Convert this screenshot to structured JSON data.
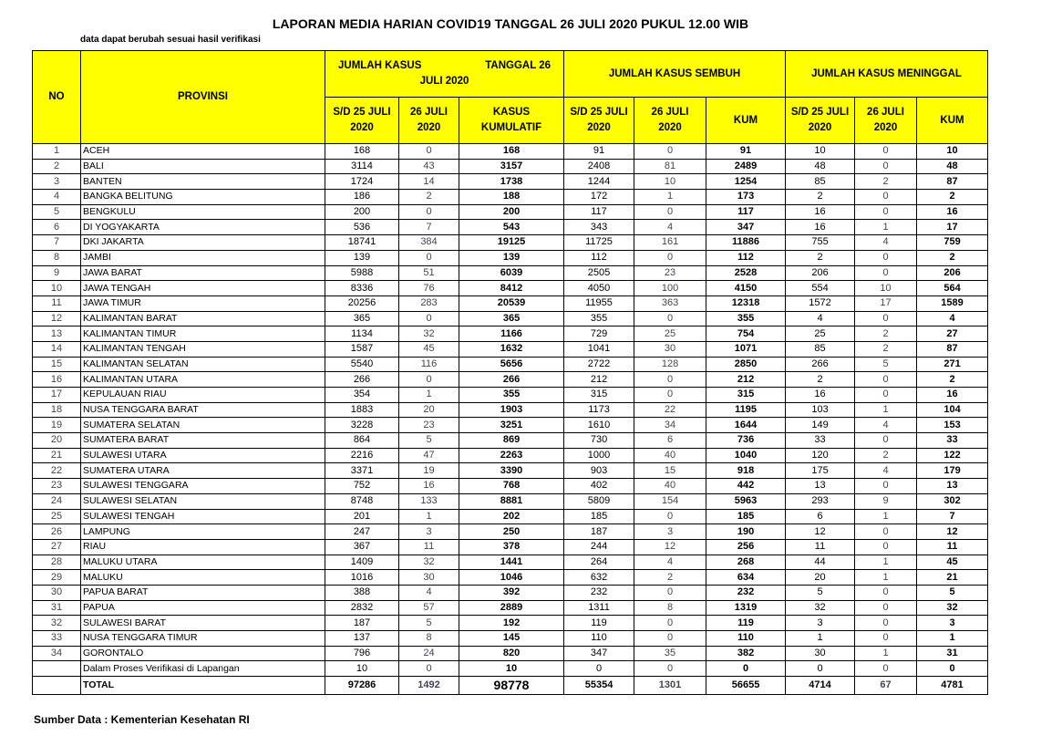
{
  "title": "LAPORAN MEDIA HARIAN COVID19 TANGGAL 26 JULI 2020 PUKUL 12.00 WIB",
  "subtitle": "data dapat berubah sesuai hasil verifikasi",
  "headers": {
    "no": "NO",
    "provinsi": "PROVINSI",
    "group_kasus_a": "JUMLAH KASUS",
    "group_kasus_b": "TANGGAL 26",
    "group_kasus_c": "JULI 2020",
    "group_sembuh": "JUMLAH KASUS SEMBUH",
    "group_meninggal": "JUMLAH KASUS MENINGGAL",
    "sd25_a": "S/D 25 JULI",
    "sd25_b": "2020",
    "d26_a": "26 JULI",
    "d26_b": "2020",
    "kum_a": "KASUS",
    "kum_b": "KUMULATIF",
    "kum": "KUM"
  },
  "rows": [
    [
      "1",
      "ACEH",
      168,
      0,
      168,
      91,
      0,
      91,
      10,
      0,
      10
    ],
    [
      "2",
      "BALI",
      3114,
      43,
      3157,
      2408,
      81,
      2489,
      48,
      0,
      48
    ],
    [
      "3",
      "BANTEN",
      1724,
      14,
      1738,
      1244,
      10,
      1254,
      85,
      2,
      87
    ],
    [
      "4",
      "BANGKA BELITUNG",
      186,
      2,
      188,
      172,
      1,
      173,
      2,
      0,
      2
    ],
    [
      "5",
      "BENGKULU",
      200,
      0,
      200,
      117,
      0,
      117,
      16,
      0,
      16
    ],
    [
      "6",
      "DI YOGYAKARTA",
      536,
      7,
      543,
      343,
      4,
      347,
      16,
      1,
      17
    ],
    [
      "7",
      "DKI JAKARTA",
      18741,
      384,
      19125,
      11725,
      161,
      11886,
      755,
      4,
      759
    ],
    [
      "8",
      "JAMBI",
      139,
      0,
      139,
      112,
      0,
      112,
      2,
      0,
      2
    ],
    [
      "9",
      "JAWA BARAT",
      5988,
      51,
      6039,
      2505,
      23,
      2528,
      206,
      0,
      206
    ],
    [
      "10",
      "JAWA TENGAH",
      8336,
      76,
      8412,
      4050,
      100,
      4150,
      554,
      10,
      564
    ],
    [
      "11",
      "JAWA TIMUR",
      20256,
      283,
      20539,
      11955,
      363,
      12318,
      1572,
      17,
      1589
    ],
    [
      "12",
      "KALIMANTAN BARAT",
      365,
      0,
      365,
      355,
      0,
      355,
      4,
      0,
      4
    ],
    [
      "13",
      "KALIMANTAN TIMUR",
      1134,
      32,
      1166,
      729,
      25,
      754,
      25,
      2,
      27
    ],
    [
      "14",
      "KALIMANTAN TENGAH",
      1587,
      45,
      1632,
      1041,
      30,
      1071,
      85,
      2,
      87
    ],
    [
      "15",
      "KALIMANTAN SELATAN",
      5540,
      116,
      5656,
      2722,
      128,
      2850,
      266,
      5,
      271
    ],
    [
      "16",
      "KALIMANTAN UTARA",
      266,
      0,
      266,
      212,
      0,
      212,
      2,
      0,
      2
    ],
    [
      "17",
      "KEPULAUAN RIAU",
      354,
      1,
      355,
      315,
      0,
      315,
      16,
      0,
      16
    ],
    [
      "18",
      "NUSA TENGGARA BARAT",
      1883,
      20,
      1903,
      1173,
      22,
      1195,
      103,
      1,
      104
    ],
    [
      "19",
      "SUMATERA SELATAN",
      3228,
      23,
      3251,
      1610,
      34,
      1644,
      149,
      4,
      153
    ],
    [
      "20",
      "SUMATERA BARAT",
      864,
      5,
      869,
      730,
      6,
      736,
      33,
      0,
      33
    ],
    [
      "21",
      "SULAWESI UTARA",
      2216,
      47,
      2263,
      1000,
      40,
      1040,
      120,
      2,
      122
    ],
    [
      "22",
      "SUMATERA UTARA",
      3371,
      19,
      3390,
      903,
      15,
      918,
      175,
      4,
      179
    ],
    [
      "23",
      "SULAWESI TENGGARA",
      752,
      16,
      768,
      402,
      40,
      442,
      13,
      0,
      13
    ],
    [
      "24",
      "SULAWESI SELATAN",
      8748,
      133,
      8881,
      5809,
      154,
      5963,
      293,
      9,
      302
    ],
    [
      "25",
      "SULAWESI TENGAH",
      201,
      1,
      202,
      185,
      0,
      185,
      6,
      1,
      7
    ],
    [
      "26",
      "LAMPUNG",
      247,
      3,
      250,
      187,
      3,
      190,
      12,
      0,
      12
    ],
    [
      "27",
      "RIAU",
      367,
      11,
      378,
      244,
      12,
      256,
      11,
      0,
      11
    ],
    [
      "28",
      "MALUKU UTARA",
      1409,
      32,
      1441,
      264,
      4,
      268,
      44,
      1,
      45
    ],
    [
      "29",
      "MALUKU",
      1016,
      30,
      1046,
      632,
      2,
      634,
      20,
      1,
      21
    ],
    [
      "30",
      "PAPUA BARAT",
      388,
      4,
      392,
      232,
      0,
      232,
      5,
      0,
      5
    ],
    [
      "31",
      "PAPUA",
      2832,
      57,
      2889,
      1311,
      8,
      1319,
      32,
      0,
      32
    ],
    [
      "32",
      "SULAWESI BARAT",
      187,
      5,
      192,
      119,
      0,
      119,
      3,
      0,
      3
    ],
    [
      "33",
      "NUSA TENGGARA TIMUR",
      137,
      8,
      145,
      110,
      0,
      110,
      1,
      0,
      1
    ],
    [
      "34",
      "GORONTALO",
      796,
      24,
      820,
      347,
      35,
      382,
      30,
      1,
      31
    ],
    [
      "",
      "Dalam Proses Verifikasi di Lapangan",
      10,
      0,
      10,
      0,
      0,
      0,
      0,
      0,
      0
    ]
  ],
  "total": [
    "",
    "TOTAL",
    97286,
    1492,
    98778,
    55354,
    1301,
    56655,
    4714,
    67,
    4781
  ],
  "source": "Sumber Data : Kementerian Kesehatan RI",
  "colors": {
    "header_bg": "#ffff00"
  }
}
